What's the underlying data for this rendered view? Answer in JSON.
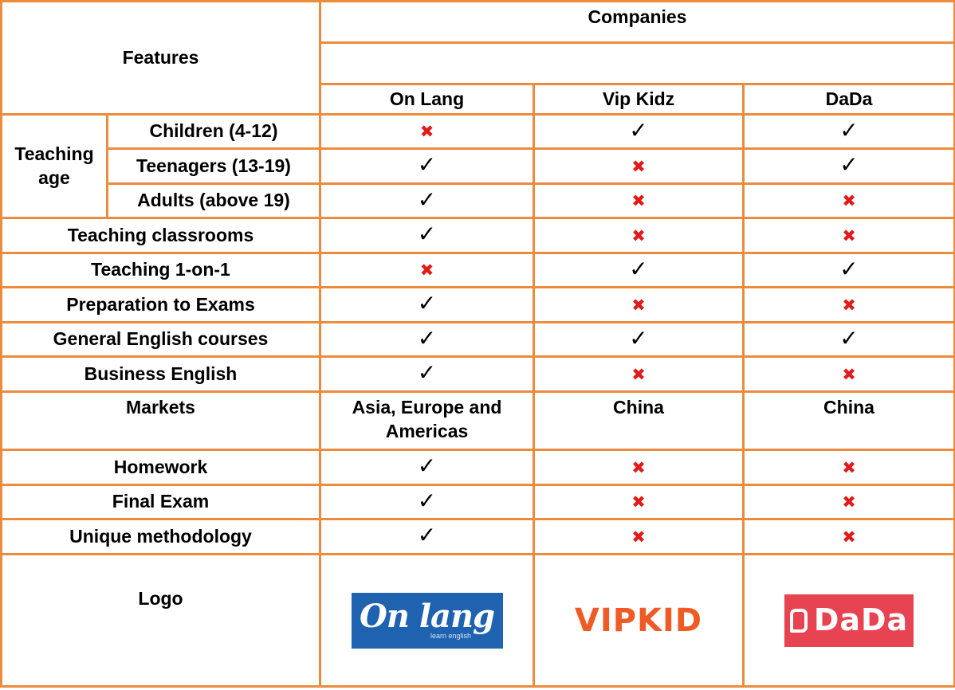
{
  "header": {
    "features_label": "Features",
    "companies_label": "Companies",
    "companies": [
      "On Lang",
      "Vip Kidz",
      "DaDa"
    ]
  },
  "teaching_age": {
    "label": "Teaching age",
    "rows": [
      {
        "label": "Children (4-12)",
        "values": [
          "no",
          "yes",
          "yes"
        ]
      },
      {
        "label": "Teenagers (13-19)",
        "values": [
          "yes",
          "no",
          "yes"
        ]
      },
      {
        "label": "Adults (above 19)",
        "values": [
          "yes",
          "no",
          "no"
        ]
      }
    ]
  },
  "rows": [
    {
      "label": "Teaching classrooms",
      "values": [
        "yes",
        "no",
        "no"
      ]
    },
    {
      "label": "Teaching 1-on-1",
      "values": [
        "no",
        "yes",
        "yes"
      ]
    },
    {
      "label": "Preparation to Exams",
      "values": [
        "yes",
        "no",
        "no"
      ]
    },
    {
      "label": "General English courses",
      "values": [
        "yes",
        "yes",
        "yes"
      ]
    },
    {
      "label": "Business English",
      "values": [
        "yes",
        "no",
        "no"
      ]
    }
  ],
  "markets": {
    "label": "Markets",
    "values": [
      "Asia, Europe and Americas",
      "China",
      "China"
    ]
  },
  "rows_after": [
    {
      "label": "Homework",
      "values": [
        "yes",
        "no",
        "no"
      ]
    },
    {
      "label": "Final Exam",
      "values": [
        "yes",
        "no",
        "no"
      ]
    },
    {
      "label": "Unique methodology",
      "values": [
        "yes",
        "no",
        "no"
      ]
    }
  ],
  "logo_row": {
    "label": "Logo",
    "onlang": {
      "main": "On lang",
      "sub": "learn english"
    },
    "vipkid": "VIPKID",
    "dada": "DaDa"
  },
  "symbols": {
    "yes": "✓",
    "no": "✖"
  },
  "colors": {
    "border": "#ED8B3C",
    "cross": "#E21A1A",
    "onlang_bg": "#1E62B0",
    "vipkid": "#F05A24",
    "dada_bg": "#E84351"
  }
}
